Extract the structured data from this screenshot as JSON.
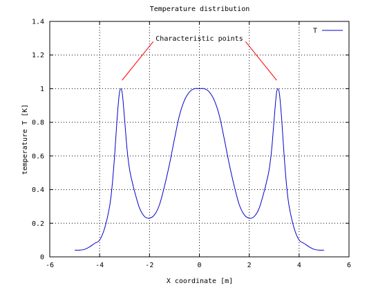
{
  "chart_data": {
    "type": "line",
    "title": "Temperature distribution",
    "xlabel": "X coordinate [m]",
    "ylabel": "temperature T [K]",
    "xlim": [
      -6,
      6
    ],
    "ylim": [
      0,
      1.4
    ],
    "xticks": [
      -6,
      -4,
      -2,
      0,
      2,
      4,
      6
    ],
    "xtick_labels": [
      "-6",
      "-4",
      "-2",
      "0",
      "2",
      "4",
      "6"
    ],
    "yticks": [
      0,
      0.2,
      0.4,
      0.6,
      0.8,
      1.0,
      1.2,
      1.4
    ],
    "ytick_labels": [
      "0",
      "0.2",
      "0.4",
      "0.6",
      "0.8",
      "1",
      "1.2",
      "1.4"
    ],
    "grid": true,
    "legend_position": "top-right",
    "series": [
      {
        "name": "T",
        "color": "#0000cc",
        "x": [
          -5.0,
          -4.8,
          -4.6,
          -4.4,
          -4.2,
          -4.0,
          -3.8,
          -3.6,
          -3.5,
          -3.4,
          -3.3,
          -3.2,
          -3.1,
          -3.0,
          -2.9,
          -2.8,
          -2.7,
          -2.6,
          -2.4,
          -2.2,
          -2.0,
          -1.8,
          -1.6,
          -1.4,
          -1.2,
          -1.0,
          -0.8,
          -0.6,
          -0.4,
          -0.2,
          0.0,
          0.2,
          0.4,
          0.6,
          0.8,
          1.0,
          1.2,
          1.4,
          1.6,
          1.8,
          2.0,
          2.2,
          2.4,
          2.6,
          2.7,
          2.8,
          2.9,
          3.0,
          3.1,
          3.2,
          3.3,
          3.4,
          3.5,
          3.6,
          3.8,
          4.0,
          4.2,
          4.4,
          4.6,
          4.8,
          5.0
        ],
        "y": [
          0.04,
          0.04,
          0.045,
          0.06,
          0.08,
          0.1,
          0.17,
          0.3,
          0.42,
          0.6,
          0.82,
          0.98,
          0.98,
          0.82,
          0.64,
          0.52,
          0.45,
          0.39,
          0.29,
          0.24,
          0.23,
          0.25,
          0.31,
          0.42,
          0.55,
          0.7,
          0.84,
          0.93,
          0.98,
          1.0,
          1.0,
          1.0,
          0.98,
          0.93,
          0.84,
          0.7,
          0.55,
          0.42,
          0.31,
          0.25,
          0.23,
          0.24,
          0.29,
          0.39,
          0.45,
          0.52,
          0.64,
          0.82,
          0.98,
          0.98,
          0.82,
          0.6,
          0.42,
          0.3,
          0.17,
          0.1,
          0.08,
          0.06,
          0.045,
          0.04,
          0.04
        ]
      }
    ],
    "annotations": [
      {
        "text": "Characteristic points",
        "color": "#ff0000",
        "arrows": [
          {
            "from": [
              -1.85,
              1.28
            ],
            "to": [
              -3.1,
              1.05
            ]
          },
          {
            "from": [
              1.85,
              1.28
            ],
            "to": [
              3.1,
              1.05
            ]
          }
        ]
      }
    ]
  }
}
